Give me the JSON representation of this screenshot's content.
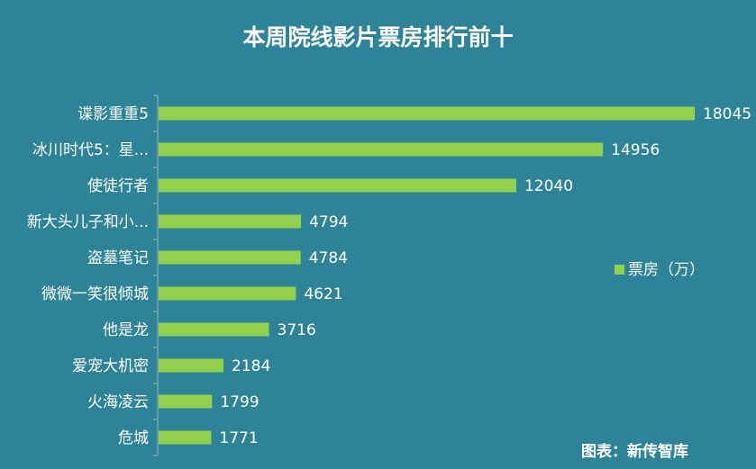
{
  "chart_data": {
    "type": "bar",
    "orientation": "horizontal",
    "title": "本周院线影片票房排行前十",
    "categories": [
      "谍影重重5",
      "冰川时代5：星...",
      "使徒行者",
      "新大头儿子和小...",
      "盗墓笔记",
      "微微一笑很倾城",
      "他是龙",
      "爱宠大机密",
      "火海凌云",
      "危城"
    ],
    "series": [
      {
        "name": "票房（万）",
        "values": [
          18045,
          14956,
          12040,
          4794,
          4784,
          4621,
          3716,
          2184,
          1799,
          1771
        ]
      }
    ],
    "xlim": [
      0,
      18045
    ],
    "grid": false,
    "legend_position": "right",
    "data_labels": true,
    "source_note": "图表：新传智库",
    "colors": {
      "background": "#2E8397",
      "bar": "#92D050",
      "text": "#FFFFFF",
      "axis": "#9FB7BE"
    }
  }
}
